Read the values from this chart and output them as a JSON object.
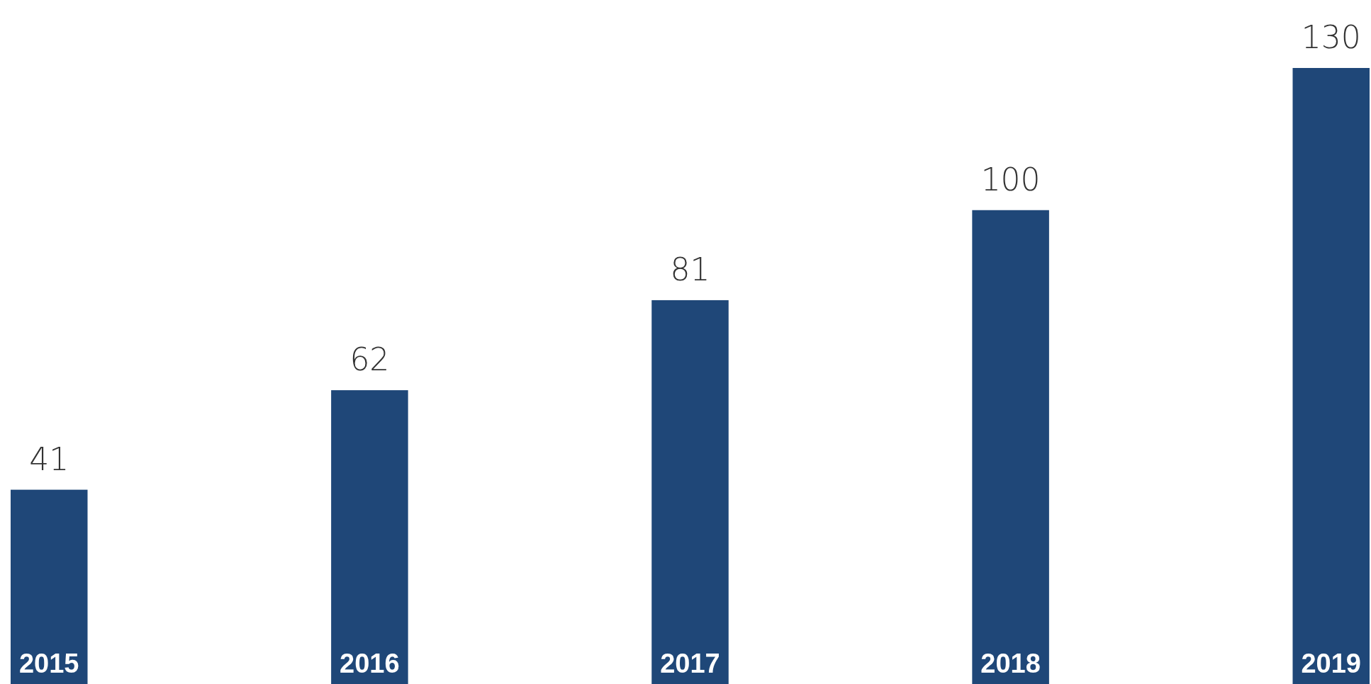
{
  "chart_data": {
    "type": "bar",
    "categories": [
      "2015",
      "2016",
      "2017",
      "2018",
      "2019"
    ],
    "values": [
      41,
      62,
      81,
      100,
      130
    ],
    "color": "#1f4778",
    "data_labels": true
  }
}
